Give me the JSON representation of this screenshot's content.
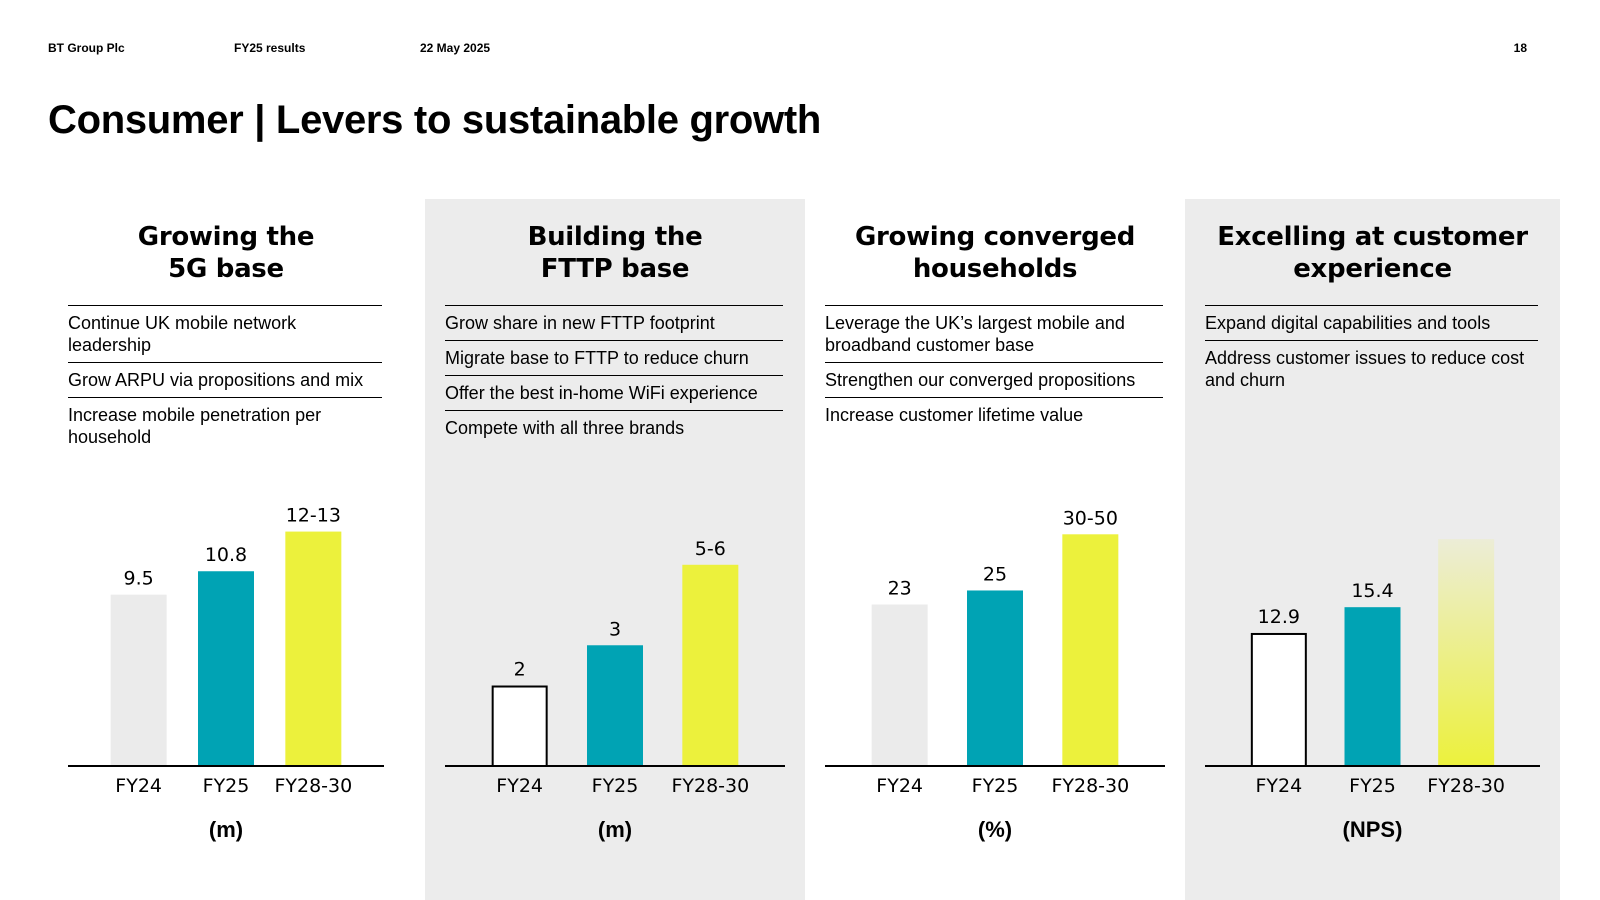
{
  "header": {
    "company": "BT Group Plc",
    "report": "FY25 results",
    "date": "22 May 2025",
    "page_number": "18"
  },
  "title": "Consumer | Levers to sustainable growth",
  "colors": {
    "grey_bar": "#ebebeb",
    "teal": "#00a3b4",
    "yellow": "#ecf13c",
    "panel": "#ececec"
  },
  "columns": [
    {
      "title_line1": "Growing the",
      "title_line2": "5G base",
      "bullets": [
        "Continue UK mobile network leadership",
        "Grow ARPU via propositions and mix",
        "Increase mobile penetration per household"
      ]
    },
    {
      "title_line1": "Building the",
      "title_line2": "FTTP base",
      "bullets": [
        "Grow share in new FTTP footprint",
        "Migrate base to FTTP to reduce churn",
        "Offer the best in-home WiFi experience",
        "Compete with all three brands"
      ]
    },
    {
      "title_line1": "Growing converged",
      "title_line2": "households",
      "bullets": [
        "Leverage the UK’s largest mobile and broadband customer base",
        "Strengthen our converged propositions",
        "Increase customer lifetime value"
      ]
    },
    {
      "title_line1": "Excelling at customer",
      "title_line2": "experience",
      "bullets": [
        "Expand digital capabilities and tools",
        "Address customer issues to reduce cost and churn"
      ]
    }
  ],
  "chart_data": [
    {
      "type": "bar",
      "title": "Growing the 5G base",
      "categories": [
        "FY24",
        "FY25",
        "FY28-30"
      ],
      "values": [
        9.5,
        10.8,
        13
      ],
      "labels": [
        "9.5",
        "10.8",
        "12-13"
      ],
      "styles": [
        "grey",
        "teal",
        "yellow"
      ],
      "unit": "(m)",
      "ylim": [
        0,
        18.3
      ]
    },
    {
      "type": "bar",
      "title": "Building the FTTP base",
      "categories": [
        "FY24",
        "FY25",
        "FY28-30"
      ],
      "values": [
        2,
        3,
        5
      ],
      "labels": [
        "2",
        "3",
        "5-6"
      ],
      "styles": [
        "outline",
        "teal",
        "yellow"
      ],
      "unit": "(m)",
      "ylim": [
        0,
        8.2
      ]
    },
    {
      "type": "bar",
      "title": "Growing converged households",
      "categories": [
        "FY24",
        "FY25",
        "FY28-30"
      ],
      "values": [
        23,
        25,
        33
      ],
      "labels": [
        "23",
        "25",
        "30-50"
      ],
      "styles": [
        "grey",
        "teal",
        "yellow"
      ],
      "unit": "(%)",
      "ylim": [
        0,
        47
      ]
    },
    {
      "type": "bar",
      "title": "Excelling at customer experience",
      "categories": [
        "FY24",
        "FY25",
        "FY28-30"
      ],
      "values": [
        12.9,
        15.4,
        22
      ],
      "labels": [
        "12.9",
        "15.4",
        ""
      ],
      "styles": [
        "outline",
        "teal",
        "gradient"
      ],
      "unit": "(NPS)",
      "ylim": [
        0,
        32
      ]
    }
  ]
}
